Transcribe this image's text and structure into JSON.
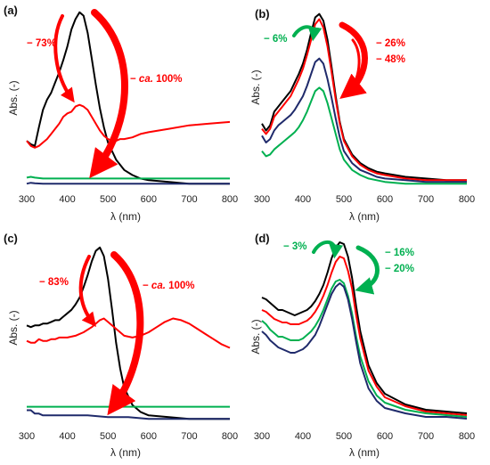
{
  "chart_data": [
    {
      "panel_label": "(a)",
      "type": "line",
      "xlabel": "λ (nm)",
      "ylabel": "Abs. (-)",
      "xlim": [
        300,
        800
      ],
      "ylim": [
        0,
        1.05
      ],
      "xticks": [
        300,
        400,
        500,
        600,
        700,
        800
      ],
      "series": [
        {
          "color": "#000000",
          "x": [
            300,
            310,
            320,
            330,
            340,
            350,
            360,
            370,
            380,
            390,
            400,
            410,
            420,
            430,
            440,
            450,
            460,
            470,
            480,
            490,
            500,
            520,
            540,
            560,
            580,
            600,
            650,
            700,
            750,
            800
          ],
          "y": [
            0.27,
            0.25,
            0.24,
            0.35,
            0.45,
            0.51,
            0.55,
            0.61,
            0.67,
            0.74,
            0.82,
            0.92,
            0.98,
            1.02,
            1.0,
            0.9,
            0.75,
            0.6,
            0.46,
            0.35,
            0.26,
            0.16,
            0.1,
            0.07,
            0.05,
            0.04,
            0.03,
            0.02,
            0.02,
            0.02
          ]
        },
        {
          "color": "#ff0000",
          "x": [
            300,
            310,
            320,
            330,
            340,
            350,
            360,
            370,
            380,
            390,
            400,
            410,
            420,
            430,
            440,
            450,
            460,
            470,
            480,
            490,
            500,
            510,
            520,
            530,
            540,
            560,
            580,
            600,
            650,
            700,
            750,
            800
          ],
          "y": [
            0.27,
            0.24,
            0.23,
            0.24,
            0.26,
            0.28,
            0.31,
            0.34,
            0.37,
            0.41,
            0.43,
            0.44,
            0.47,
            0.48,
            0.47,
            0.45,
            0.41,
            0.37,
            0.33,
            0.3,
            0.28,
            0.27,
            0.27,
            0.28,
            0.28,
            0.29,
            0.31,
            0.32,
            0.34,
            0.36,
            0.37,
            0.38
          ]
        },
        {
          "color": "#00b050",
          "x": [
            300,
            310,
            320,
            340,
            360,
            380,
            400,
            450,
            500,
            550,
            600,
            650,
            700,
            750,
            800
          ],
          "y": [
            0.055,
            0.06,
            0.055,
            0.05,
            0.05,
            0.05,
            0.05,
            0.05,
            0.05,
            0.05,
            0.05,
            0.05,
            0.05,
            0.05,
            0.05
          ]
        },
        {
          "color": "#1f2a6b",
          "x": [
            300,
            310,
            320,
            340,
            360,
            380,
            400,
            450,
            500,
            550,
            600,
            650,
            700,
            750,
            800
          ],
          "y": [
            0.02,
            0.025,
            0.022,
            0.02,
            0.02,
            0.02,
            0.02,
            0.02,
            0.02,
            0.02,
            0.02,
            0.02,
            0.02,
            0.02,
            0.02
          ]
        }
      ],
      "annotations": [
        {
          "text": "− 73%",
          "color": "#ff0000",
          "italic_part": ""
        },
        {
          "text": "− ca. 100%",
          "color": "#ff0000",
          "italic_part": "ca."
        }
      ]
    },
    {
      "panel_label": "(b)",
      "type": "line",
      "xlabel": "λ (nm)",
      "ylabel": "Abs. (-)",
      "xlim": [
        300,
        800
      ],
      "ylim": [
        0,
        1.05
      ],
      "xticks": [
        300,
        400,
        500,
        600,
        700,
        800
      ],
      "series": [
        {
          "color": "#000000",
          "x": [
            300,
            310,
            320,
            330,
            340,
            350,
            360,
            370,
            380,
            390,
            400,
            410,
            420,
            430,
            440,
            450,
            460,
            470,
            480,
            490,
            500,
            520,
            540,
            560,
            580,
            600,
            650,
            700,
            750,
            800
          ],
          "y": [
            0.37,
            0.33,
            0.36,
            0.44,
            0.47,
            0.5,
            0.53,
            0.56,
            0.61,
            0.66,
            0.72,
            0.8,
            0.9,
            0.99,
            1.01,
            0.97,
            0.86,
            0.7,
            0.53,
            0.38,
            0.28,
            0.19,
            0.14,
            0.11,
            0.09,
            0.08,
            0.06,
            0.05,
            0.04,
            0.04
          ]
        },
        {
          "color": "#ff0000",
          "x": [
            300,
            310,
            320,
            330,
            340,
            350,
            360,
            370,
            380,
            390,
            400,
            410,
            420,
            430,
            440,
            450,
            460,
            470,
            480,
            490,
            500,
            520,
            540,
            560,
            580,
            600,
            650,
            700,
            750,
            800
          ],
          "y": [
            0.34,
            0.31,
            0.34,
            0.41,
            0.44,
            0.47,
            0.5,
            0.53,
            0.58,
            0.63,
            0.69,
            0.77,
            0.86,
            0.95,
            0.98,
            0.93,
            0.82,
            0.67,
            0.51,
            0.37,
            0.27,
            0.18,
            0.13,
            0.1,
            0.08,
            0.07,
            0.05,
            0.04,
            0.04,
            0.04
          ]
        },
        {
          "color": "#1f2a6b",
          "x": [
            300,
            310,
            320,
            330,
            340,
            350,
            360,
            370,
            380,
            390,
            400,
            410,
            420,
            430,
            440,
            450,
            460,
            470,
            480,
            490,
            500,
            520,
            540,
            560,
            580,
            600,
            650,
            700,
            750,
            800
          ],
          "y": [
            0.3,
            0.26,
            0.28,
            0.33,
            0.36,
            0.38,
            0.4,
            0.42,
            0.45,
            0.49,
            0.53,
            0.59,
            0.66,
            0.73,
            0.75,
            0.72,
            0.63,
            0.52,
            0.4,
            0.29,
            0.21,
            0.14,
            0.1,
            0.08,
            0.06,
            0.05,
            0.04,
            0.03,
            0.03,
            0.03
          ]
        },
        {
          "color": "#00b050",
          "x": [
            300,
            310,
            320,
            330,
            340,
            350,
            360,
            370,
            380,
            390,
            400,
            410,
            420,
            430,
            440,
            450,
            460,
            470,
            480,
            490,
            500,
            520,
            540,
            560,
            580,
            600,
            650,
            700,
            750,
            800
          ],
          "y": [
            0.21,
            0.18,
            0.19,
            0.22,
            0.24,
            0.26,
            0.28,
            0.3,
            0.32,
            0.35,
            0.39,
            0.44,
            0.5,
            0.56,
            0.58,
            0.56,
            0.49,
            0.4,
            0.31,
            0.22,
            0.16,
            0.1,
            0.07,
            0.05,
            0.04,
            0.03,
            0.02,
            0.02,
            0.02,
            0.02
          ]
        }
      ],
      "annotations": [
        {
          "text": "− 6%",
          "color": "#00b050",
          "italic_part": ""
        },
        {
          "text": "− 26%",
          "color": "#ff0000",
          "italic_part": ""
        },
        {
          "text": "− 48%",
          "color": "#ff0000",
          "italic_part": ""
        }
      ]
    },
    {
      "panel_label": "(c)",
      "type": "line",
      "xlabel": "λ (nm)",
      "ylabel": "Abs. (-)",
      "xlim": [
        300,
        800
      ],
      "ylim": [
        0,
        1.05
      ],
      "xticks": [
        300,
        400,
        500,
        600,
        700,
        800
      ],
      "series": [
        {
          "color": "#000000",
          "x": [
            300,
            310,
            320,
            330,
            340,
            350,
            360,
            370,
            380,
            390,
            400,
            410,
            420,
            430,
            440,
            450,
            460,
            470,
            480,
            490,
            500,
            510,
            520,
            530,
            540,
            560,
            580,
            600,
            650,
            700,
            750,
            800
          ],
          "y": [
            0.57,
            0.56,
            0.57,
            0.57,
            0.58,
            0.58,
            0.59,
            0.6,
            0.6,
            0.62,
            0.64,
            0.66,
            0.69,
            0.73,
            0.79,
            0.86,
            0.94,
            1.0,
            1.02,
            0.97,
            0.84,
            0.66,
            0.47,
            0.32,
            0.21,
            0.11,
            0.07,
            0.05,
            0.04,
            0.03,
            0.03,
            0.03
          ]
        },
        {
          "color": "#ff0000",
          "x": [
            300,
            310,
            320,
            330,
            340,
            350,
            360,
            370,
            380,
            390,
            400,
            420,
            440,
            460,
            480,
            490,
            500,
            520,
            540,
            560,
            580,
            600,
            620,
            640,
            660,
            680,
            700,
            720,
            740,
            760,
            780,
            800
          ],
          "y": [
            0.48,
            0.47,
            0.47,
            0.49,
            0.48,
            0.48,
            0.49,
            0.49,
            0.5,
            0.5,
            0.5,
            0.51,
            0.53,
            0.56,
            0.6,
            0.61,
            0.59,
            0.55,
            0.51,
            0.5,
            0.51,
            0.53,
            0.56,
            0.59,
            0.61,
            0.6,
            0.58,
            0.55,
            0.52,
            0.49,
            0.46,
            0.44
          ]
        },
        {
          "color": "#00b050",
          "x": [
            300,
            320,
            340,
            360,
            380,
            400,
            450,
            500,
            550,
            600,
            650,
            700,
            750,
            800
          ],
          "y": [
            0.1,
            0.1,
            0.1,
            0.1,
            0.1,
            0.1,
            0.1,
            0.1,
            0.1,
            0.1,
            0.1,
            0.1,
            0.1,
            0.1
          ]
        },
        {
          "color": "#1f2a6b",
          "x": [
            300,
            310,
            320,
            330,
            340,
            360,
            380,
            400,
            450,
            500,
            550,
            600,
            650,
            700,
            750,
            800
          ],
          "y": [
            0.08,
            0.08,
            0.06,
            0.06,
            0.05,
            0.05,
            0.05,
            0.05,
            0.05,
            0.04,
            0.04,
            0.03,
            0.03,
            0.03,
            0.03,
            0.03
          ]
        }
      ],
      "annotations": [
        {
          "text": "− 83%",
          "color": "#ff0000",
          "italic_part": ""
        },
        {
          "text": "− ca. 100%",
          "color": "#ff0000",
          "italic_part": "ca."
        }
      ]
    },
    {
      "panel_label": "(d)",
      "type": "line",
      "xlabel": "λ (nm)",
      "ylabel": "Abs. (-)",
      "xlim": [
        300,
        800
      ],
      "ylim": [
        0,
        1.05
      ],
      "xticks": [
        300,
        400,
        500,
        600,
        700,
        800
      ],
      "series": [
        {
          "color": "#000000",
          "x": [
            300,
            310,
            320,
            330,
            340,
            350,
            360,
            370,
            380,
            390,
            400,
            410,
            420,
            430,
            440,
            450,
            460,
            470,
            480,
            490,
            500,
            510,
            520,
            530,
            540,
            560,
            580,
            600,
            650,
            700,
            750,
            800
          ],
          "y": [
            0.71,
            0.7,
            0.68,
            0.66,
            0.64,
            0.64,
            0.63,
            0.62,
            0.61,
            0.62,
            0.63,
            0.64,
            0.66,
            0.69,
            0.73,
            0.78,
            0.85,
            0.93,
            0.99,
            1.02,
            1.01,
            0.94,
            0.82,
            0.66,
            0.52,
            0.33,
            0.23,
            0.17,
            0.11,
            0.08,
            0.07,
            0.06
          ]
        },
        {
          "color": "#ff0000",
          "x": [
            300,
            310,
            320,
            330,
            340,
            350,
            360,
            370,
            380,
            390,
            400,
            410,
            420,
            430,
            440,
            450,
            460,
            470,
            480,
            490,
            500,
            510,
            520,
            530,
            540,
            560,
            580,
            600,
            650,
            700,
            750,
            800
          ],
          "y": [
            0.64,
            0.63,
            0.61,
            0.59,
            0.58,
            0.57,
            0.57,
            0.56,
            0.56,
            0.56,
            0.57,
            0.58,
            0.6,
            0.63,
            0.67,
            0.72,
            0.78,
            0.85,
            0.91,
            0.94,
            0.93,
            0.86,
            0.76,
            0.61,
            0.48,
            0.3,
            0.21,
            0.15,
            0.1,
            0.07,
            0.06,
            0.05
          ]
        },
        {
          "color": "#00b050",
          "x": [
            300,
            310,
            320,
            330,
            340,
            350,
            360,
            370,
            380,
            390,
            400,
            410,
            420,
            430,
            440,
            450,
            460,
            470,
            480,
            490,
            500,
            510,
            520,
            530,
            540,
            560,
            580,
            600,
            650,
            700,
            750,
            800
          ],
          "y": [
            0.58,
            0.56,
            0.53,
            0.51,
            0.49,
            0.49,
            0.48,
            0.47,
            0.47,
            0.47,
            0.48,
            0.5,
            0.52,
            0.55,
            0.59,
            0.64,
            0.7,
            0.76,
            0.8,
            0.81,
            0.79,
            0.72,
            0.62,
            0.49,
            0.38,
            0.24,
            0.16,
            0.12,
            0.08,
            0.06,
            0.05,
            0.04
          ]
        },
        {
          "color": "#1f2a6b",
          "x": [
            300,
            310,
            320,
            330,
            340,
            350,
            360,
            370,
            380,
            390,
            400,
            410,
            420,
            430,
            440,
            450,
            460,
            470,
            480,
            490,
            500,
            510,
            520,
            530,
            540,
            560,
            580,
            600,
            650,
            700,
            750,
            800
          ],
          "y": [
            0.52,
            0.5,
            0.47,
            0.45,
            0.43,
            0.42,
            0.41,
            0.4,
            0.4,
            0.41,
            0.42,
            0.44,
            0.47,
            0.5,
            0.55,
            0.61,
            0.67,
            0.73,
            0.77,
            0.79,
            0.77,
            0.7,
            0.59,
            0.46,
            0.34,
            0.2,
            0.13,
            0.09,
            0.06,
            0.04,
            0.04,
            0.03
          ]
        }
      ],
      "annotations": [
        {
          "text": "− 3%",
          "color": "#00b050",
          "italic_part": ""
        },
        {
          "text": "− 16%",
          "color": "#00b050",
          "italic_part": ""
        },
        {
          "text": "− 20%",
          "color": "#00b050",
          "italic_part": ""
        }
      ]
    }
  ]
}
